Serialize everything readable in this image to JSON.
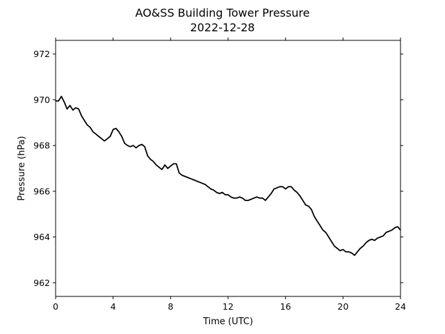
{
  "chart_data": {
    "type": "line",
    "title": "AO&SS Building Tower Pressure",
    "subtitle": "2022-12-28",
    "xlabel": "Time (UTC)",
    "ylabel": "Pressure (hPa)",
    "xlim": [
      0,
      24
    ],
    "ylim": [
      961.4,
      972.6
    ],
    "xticks": [
      0,
      4,
      8,
      12,
      16,
      20,
      24
    ],
    "yticks": [
      962,
      964,
      966,
      968,
      970,
      972
    ],
    "grid": false,
    "line_color": "#000000",
    "series": [
      {
        "x": [
          0,
          0.2,
          0.4,
          0.6,
          0.8,
          1.0,
          1.2,
          1.4,
          1.6,
          1.8,
          2.0,
          2.2,
          2.4,
          2.6,
          2.8,
          3.0,
          3.2,
          3.4,
          3.6,
          3.8,
          4.0,
          4.2,
          4.4,
          4.6,
          4.8,
          5.0,
          5.2,
          5.4,
          5.6,
          5.8,
          6.0,
          6.2,
          6.4,
          6.6,
          6.8,
          7.0,
          7.2,
          7.4,
          7.6,
          7.8,
          8.0,
          8.2,
          8.4,
          8.6,
          8.8,
          9.0,
          9.2,
          9.4,
          9.6,
          9.8,
          10.0,
          10.2,
          10.4,
          10.6,
          10.8,
          11.0,
          11.2,
          11.4,
          11.6,
          11.8,
          12.0,
          12.2,
          12.4,
          12.6,
          12.8,
          13.0,
          13.2,
          13.4,
          13.6,
          13.8,
          14.0,
          14.2,
          14.4,
          14.6,
          14.8,
          15.0,
          15.2,
          15.4,
          15.6,
          15.8,
          16.0,
          16.2,
          16.4,
          16.6,
          16.8,
          17.0,
          17.2,
          17.4,
          17.6,
          17.8,
          18.0,
          18.2,
          18.4,
          18.6,
          18.8,
          19.0,
          19.2,
          19.4,
          19.6,
          19.8,
          20.0,
          20.2,
          20.4,
          20.6,
          20.8,
          21.0,
          21.2,
          21.4,
          21.6,
          21.8,
          22.0,
          22.2,
          22.4,
          22.6,
          22.8,
          23.0,
          23.2,
          23.4,
          23.6,
          23.8,
          24.0
        ],
        "values": [
          969.95,
          969.95,
          970.15,
          969.9,
          969.6,
          969.75,
          969.55,
          969.65,
          969.6,
          969.3,
          969.1,
          968.9,
          968.8,
          968.6,
          968.5,
          968.4,
          968.3,
          968.2,
          968.3,
          968.4,
          968.7,
          968.75,
          968.6,
          968.4,
          968.1,
          968.0,
          967.95,
          968.0,
          967.9,
          968.0,
          968.05,
          967.95,
          967.55,
          967.4,
          967.3,
          967.15,
          967.05,
          966.95,
          967.15,
          967.0,
          967.1,
          967.2,
          967.2,
          966.8,
          966.7,
          966.65,
          966.6,
          966.55,
          966.5,
          966.45,
          966.4,
          966.35,
          966.3,
          966.2,
          966.1,
          966.05,
          965.95,
          965.9,
          965.95,
          965.85,
          965.85,
          965.75,
          965.7,
          965.7,
          965.75,
          965.7,
          965.6,
          965.6,
          965.65,
          965.7,
          965.75,
          965.7,
          965.7,
          965.6,
          965.75,
          965.9,
          966.1,
          966.15,
          966.2,
          966.2,
          966.1,
          966.2,
          966.2,
          966.05,
          965.95,
          965.8,
          965.6,
          965.4,
          965.35,
          965.2,
          964.9,
          964.7,
          964.5,
          964.3,
          964.2,
          964.0,
          963.8,
          963.6,
          963.5,
          963.4,
          963.45,
          963.35,
          963.35,
          963.3,
          963.2,
          963.35,
          963.5,
          963.6,
          963.75,
          963.85,
          963.9,
          963.85,
          963.95,
          964.0,
          964.05,
          964.2,
          964.25,
          964.3,
          964.4,
          964.45,
          964.3
        ]
      }
    ]
  }
}
